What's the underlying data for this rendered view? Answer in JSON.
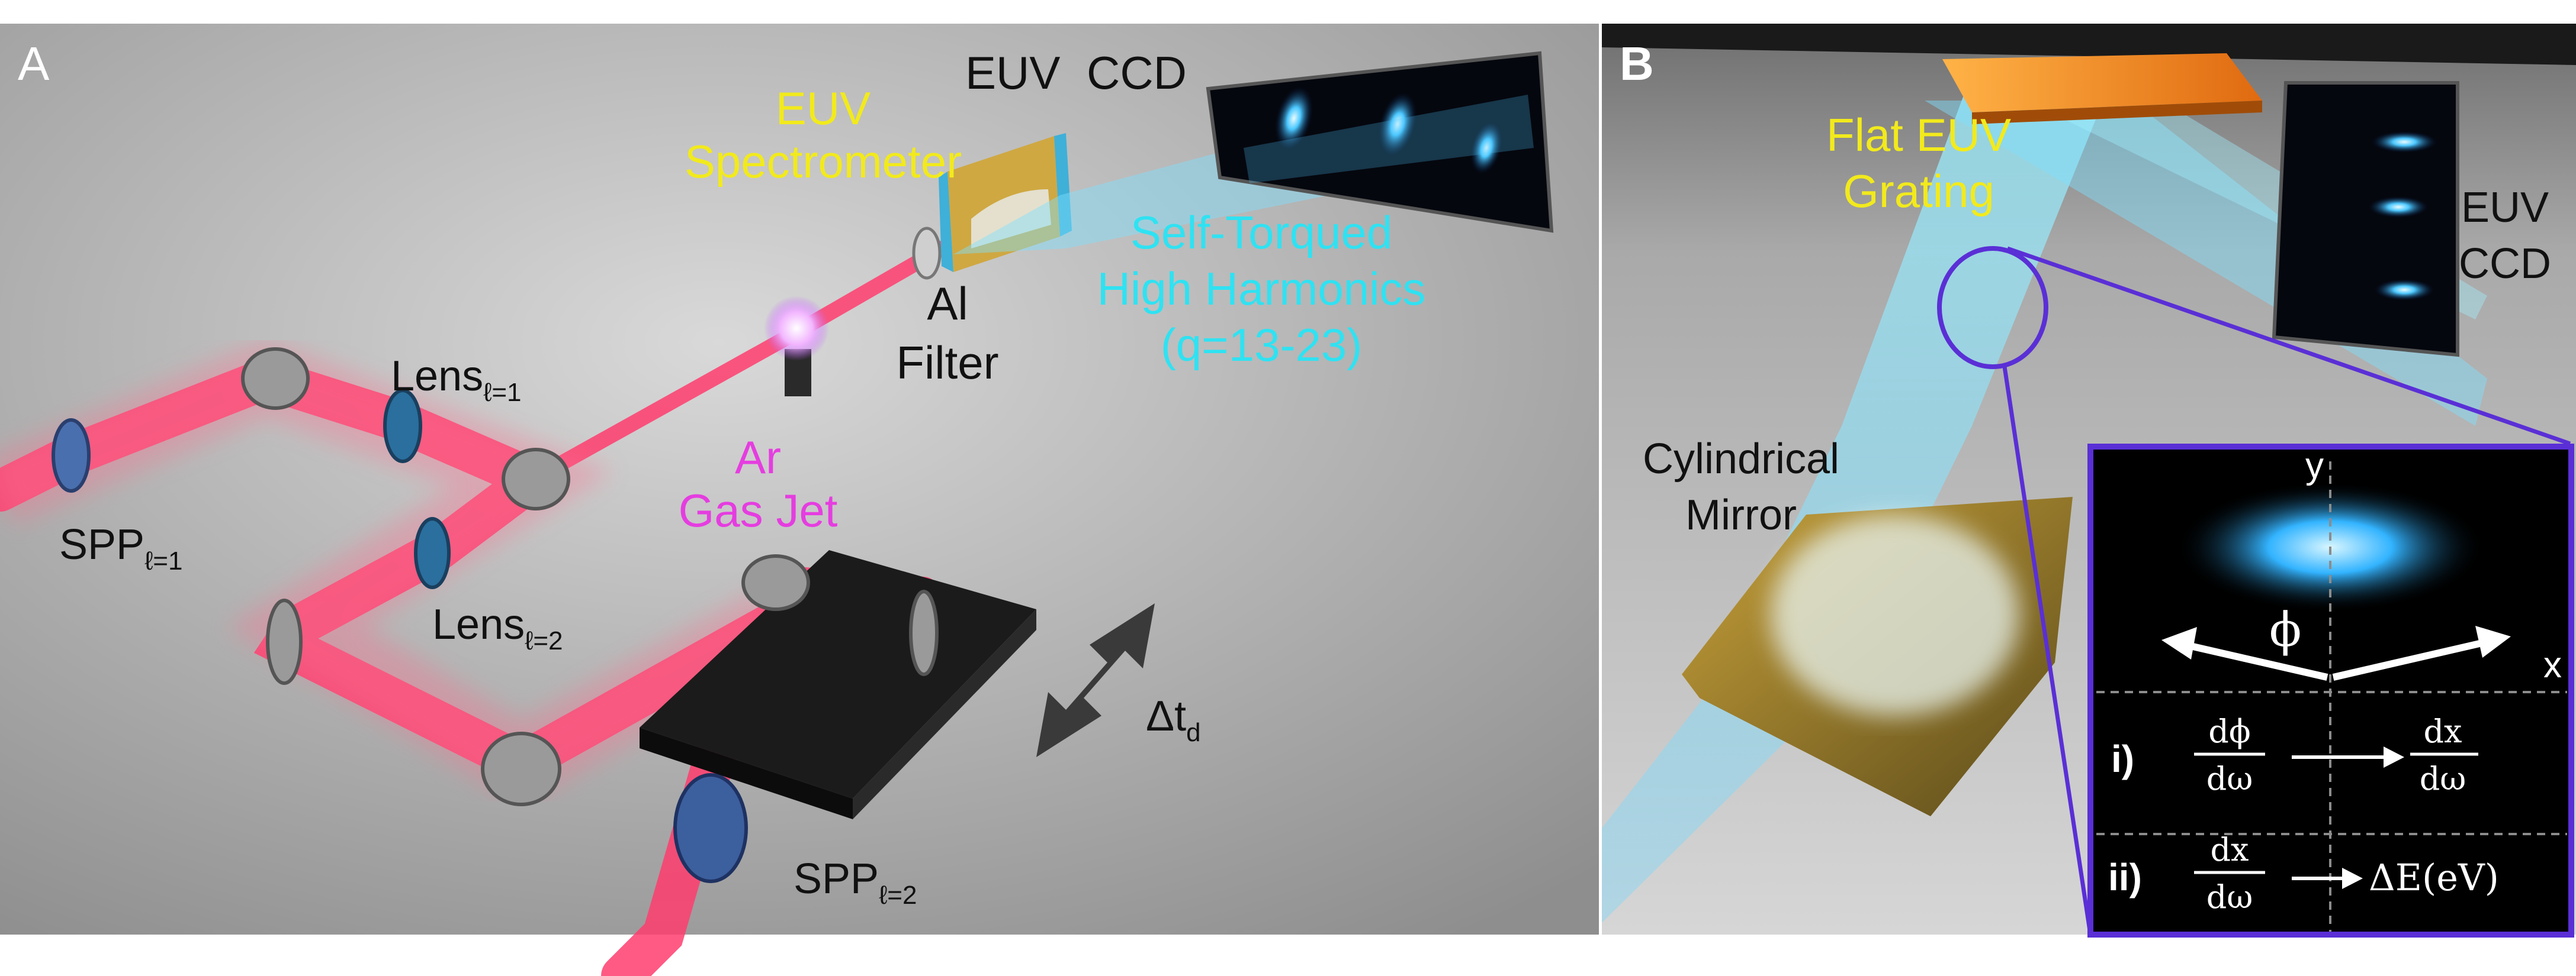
{
  "panel_a": {
    "panel_letter": "A",
    "spectrometer": [
      "EUV",
      "Spectrometer"
    ],
    "euv": "EUV",
    "ccd": "CCD",
    "self_torqued": [
      "Self-Torqued",
      "High Harmonics",
      "(q=13-23)"
    ],
    "al_filter": [
      "Al",
      "Filter"
    ],
    "gas_jet": [
      "Ar",
      "Gas Jet"
    ],
    "lens1": {
      "main": "Lens",
      "sub": "ℓ=1"
    },
    "lens2": {
      "main": "Lens",
      "sub": "ℓ=2"
    },
    "spp1": {
      "main": "SPP",
      "sub": "ℓ=1"
    },
    "spp2": {
      "main": "SPP",
      "sub": "ℓ=2"
    },
    "delay": {
      "main": "Δt",
      "sub": "d"
    }
  },
  "panel_b": {
    "panel_letter": "B",
    "grating": [
      "Flat EUV",
      "Grating"
    ],
    "ccd": [
      "EUV",
      "CCD"
    ],
    "mirror": [
      "Cylindrical",
      "Mirror"
    ],
    "inset": {
      "axis_y": "y",
      "axis_x": "x",
      "angle": "ϕ",
      "row1": {
        "label": "i)",
        "left_num": "dϕ",
        "left_den": "dω",
        "right_num": "dx",
        "right_den": "dω"
      },
      "row2": {
        "label": "ii)",
        "left_num": "dx",
        "left_den": "dω",
        "right": "ΔE(eV)"
      }
    }
  },
  "colors": {
    "laser": "#ff3d6e",
    "euv_beam": "#5fd0ff",
    "yellow_label": "#f2ea1c",
    "cyan_label": "#2fe2f2",
    "magenta_label": "#e53de0",
    "inset_border": "#5a2fd6",
    "grating": "#f08a1a"
  }
}
